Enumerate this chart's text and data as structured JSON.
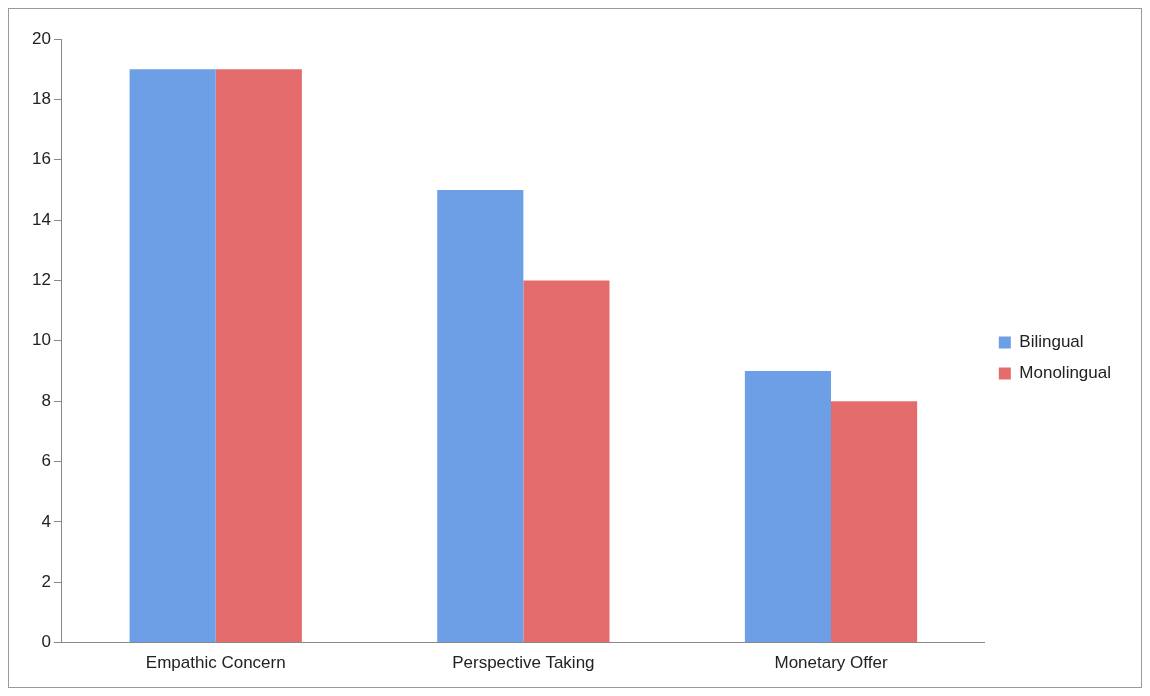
{
  "chart_data": {
    "type": "bar",
    "categories": [
      "Empathic Concern",
      "Perspective Taking",
      "Monetary Offer"
    ],
    "series": [
      {
        "name": "Bilingual",
        "color": "#6c9fe6",
        "values": [
          19,
          15,
          9
        ]
      },
      {
        "name": "Monolingual",
        "color": "#e46c6c",
        "values": [
          19,
          12,
          8
        ]
      }
    ],
    "ylim": [
      0,
      20
    ],
    "yticks": [
      0,
      2,
      4,
      6,
      8,
      10,
      12,
      14,
      16,
      18,
      20
    ],
    "grid": false,
    "legend": "right"
  }
}
